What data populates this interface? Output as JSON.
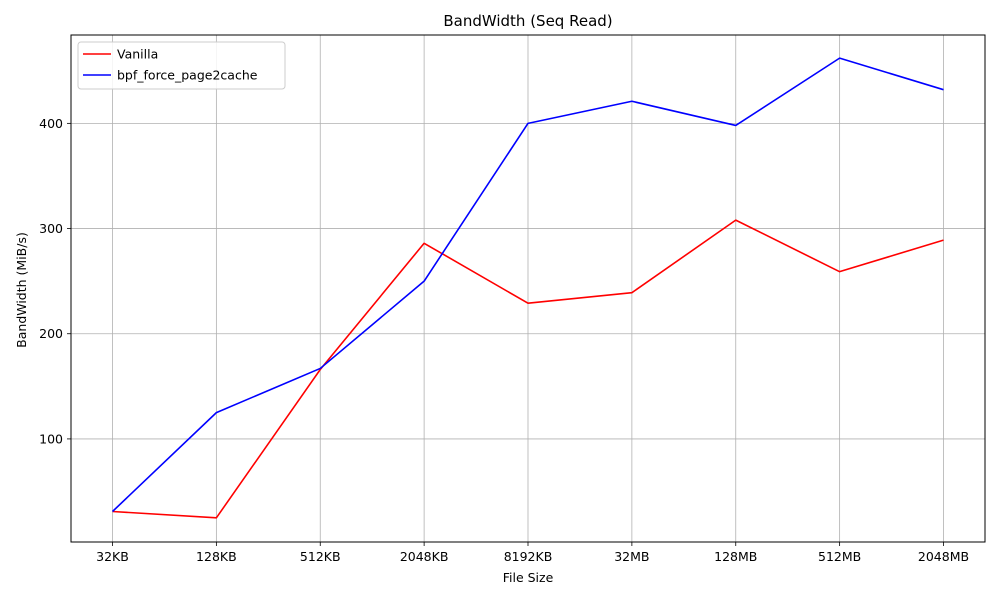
{
  "chart_data": {
    "type": "line",
    "title": "BandWidth (Seq Read)",
    "xlabel": "File Size",
    "ylabel": "BandWidth (MiB/s)",
    "categories": [
      "32KB",
      "128KB",
      "512KB",
      "2048KB",
      "8192KB",
      "32MB",
      "128MB",
      "512MB",
      "2048MB"
    ],
    "ylim": [
      2,
      484
    ],
    "yticks": [
      100,
      200,
      300,
      400
    ],
    "grid": true,
    "legend_position": "top-left",
    "series": [
      {
        "name": "Vanilla",
        "color": "#ff0000",
        "values": [
          31,
          25,
          166,
          286,
          229,
          239,
          308,
          259,
          289
        ]
      },
      {
        "name": "bpf_force_page2cache",
        "color": "#0000ff",
        "values": [
          31,
          125,
          167,
          250,
          400,
          421,
          398,
          462,
          432
        ]
      }
    ]
  }
}
